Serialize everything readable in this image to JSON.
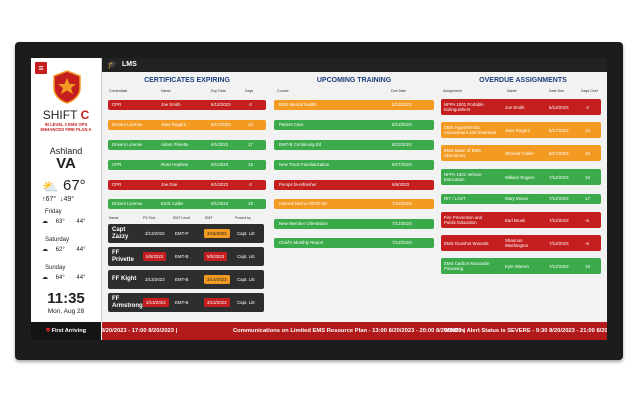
{
  "header": {
    "title": "LMS",
    "icon": "graduation-cap-icon"
  },
  "sidebar": {
    "shift_label": "SHIFT",
    "shift_letter": "C",
    "shift_sub1": "IN LEVEL 2 EMS OPS",
    "shift_sub2": "ENHANCED FIRE PLAN A",
    "city": "Ashland",
    "state": "VA",
    "weather_icon": "partly-cloudy-icon",
    "temp": "67°",
    "high": "↑67°",
    "low": "↓49°",
    "forecast": [
      {
        "day": "Friday",
        "high": "63°",
        "low": "44°"
      },
      {
        "day": "Saturday",
        "high": "62°",
        "low": "44°"
      },
      {
        "day": "Sunday",
        "high": "64°",
        "low": "44°"
      }
    ],
    "time": "11:35",
    "date": "Mon, Aug 28",
    "brand": "First Arriving"
  },
  "certs": {
    "title": "CERTIFICATES EXPIRING",
    "headers": [
      "Credentials",
      "Name",
      "Exp Date",
      "Days"
    ],
    "rows": [
      {
        "cred": "CPR",
        "name": "Joe Smith",
        "exp": "5/12/2023",
        "days": "-2",
        "color": "red"
      },
      {
        "cred": "Drivers License",
        "name": "Jane Rogers",
        "exp": "8/17/2023",
        "days": "12",
        "color": "orange"
      },
      {
        "cred": "Drivers License",
        "name": "Adam Privette",
        "exp": "9/1/2023",
        "days": "17",
        "color": "green"
      },
      {
        "cred": "CPR",
        "name": "Ross Hopkins",
        "exp": "9/1/2023",
        "days": "19",
        "color": "green"
      },
      {
        "cred": "CPR",
        "name": "Joe Doe",
        "exp": "9/1/2023",
        "days": "-2",
        "color": "red"
      },
      {
        "cred": "Drivers License",
        "name": "Erick Caller",
        "exp": "9/1/2023",
        "days": "19",
        "color": "green"
      }
    ]
  },
  "people": {
    "headers": [
      "Name",
      "PS Test",
      "EMT Level",
      "EMT",
      "Posted by"
    ],
    "cards": [
      {
        "line1": "Capt",
        "line2": "Zazzy",
        "date1": "3/13/2023",
        "level": "EMT-P",
        "date2": "3/15/2023",
        "pill2": "orange",
        "by": "Capt. Litt"
      },
      {
        "line1": "FF",
        "line2": "Privette",
        "date1": "5/5/2023",
        "pill1": "red",
        "level": "EMT-B",
        "date2": "5/5/2023",
        "pill2": "red",
        "by": "Capt. Litt"
      },
      {
        "line1": "FF Kight",
        "line2": "",
        "date1": "3/13/2023",
        "level": "EMT-B",
        "date2": "3/14/2023",
        "pill2": "orange",
        "by": "Capt. Litt"
      },
      {
        "line1": "FF",
        "line2": "Armstrong",
        "date1": "3/13/2023",
        "pill1": "red",
        "level": "EMT-B",
        "date2": "3/13/2023",
        "pill2": "red",
        "by": "Capt. Litt"
      }
    ]
  },
  "training": {
    "title": "UPCOMING TRAINING",
    "headers": [
      "Course",
      "Due Date"
    ],
    "rows": [
      {
        "course": "EMS Mental health",
        "due": "5/12/2023",
        "color": "orange"
      },
      {
        "course": "Patient Care",
        "due": "6/12/2023",
        "color": "green"
      },
      {
        "course": "EMT-B Continuing Ed",
        "due": "6/22/2023",
        "color": "green"
      },
      {
        "course": "New Truck Familiarization",
        "due": "6/27/2023",
        "color": "green"
      },
      {
        "course": "Pumps fa-refresher",
        "due": "6/6/2023",
        "color": "red"
      },
      {
        "course": "Internal Memo #2020-02",
        "due": "7/12/2023",
        "color": "orange"
      },
      {
        "course": "New Member Orientation",
        "due": "7/12/2023",
        "color": "green"
      },
      {
        "course": "Chief's Monthly Report",
        "due": "7/12/2023",
        "color": "green"
      }
    ]
  },
  "overdue": {
    "title": "OVERDUE ASSIGNMENTS",
    "headers": [
      "Assignment",
      "Name",
      "Date Due",
      "Days Over"
    ],
    "rows": [
      {
        "a1": "NFPA 1001 Portable",
        "a2": "Extinguishers",
        "name": "Joe Smith",
        "due": "5/12/2023",
        "days": "-2",
        "color": "red"
      },
      {
        "a1": "EMS Hypothermia",
        "a2": "Assessment and treatment",
        "name": "Jane Rogers",
        "due": "8/17/2023",
        "days": "12",
        "color": "orange"
      },
      {
        "a1": "EMS Basic of EMS",
        "a2": "Operations",
        "name": "Shanda Collier",
        "due": "8/17/2023",
        "days": "10",
        "color": "orange"
      },
      {
        "a1": "NFPA 1001 Vehicle",
        "a2": "Extrication",
        "name": "William Rogers",
        "due": "7/12/2023",
        "days": "19",
        "color": "green"
      },
      {
        "a1": "RIT / LAST",
        "a2": "",
        "name": "Mary Moore",
        "due": "7/12/2023",
        "days": "17",
        "color": "green"
      },
      {
        "a1": "Fire Prevention and",
        "a2": "Public Education",
        "name": "Earl Brunk",
        "due": "7/12/2023",
        "days": "-6",
        "color": "red"
      },
      {
        "a1": "EMS Gunshot Wounds",
        "a2": "",
        "name": "Shannon Washington",
        "due": "7/12/2023",
        "days": "-6",
        "color": "red"
      },
      {
        "a1": "EMS Carbon Monoxide",
        "a2": "Poisoning",
        "name": "Kyle Warren",
        "due": "7/12/2023",
        "days": "19",
        "color": "green"
      }
    ]
  },
  "ticker": {
    "item1": "3 8/20/2023 - 17:00 8/20/2023 |",
    "item2": "Communications on Limited EMS Resource Plan - 13:00 8/20/2023 - 20:00 8/20/2023 |",
    "item3": "Wildfire Alert Status is SEVERE - 9:30 8/20/2023 - 21:00 8/20/2"
  },
  "colors": {
    "red": "#c41e1e",
    "orange": "#f39a22",
    "green": "#3aaa4b",
    "navy": "#1a3d7c"
  }
}
